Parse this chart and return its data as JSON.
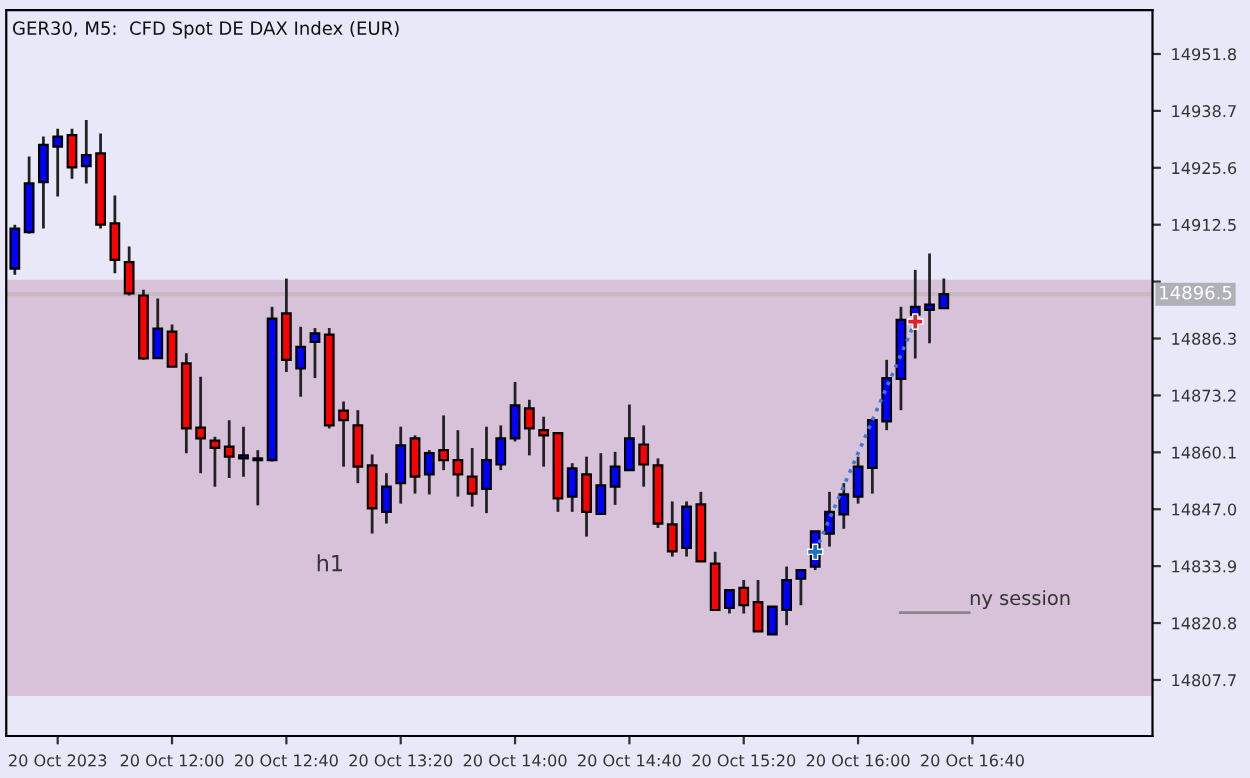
{
  "chart_data": {
    "type": "candlestick",
    "title": "GER30, M5:  CFD Spot DE DAX Index (EUR)",
    "x": [
      "2023-10-20T11:05",
      "2023-10-20T11:10",
      "2023-10-20T11:15",
      "2023-10-20T11:20",
      "2023-10-20T11:25",
      "2023-10-20T11:30",
      "2023-10-20T11:35",
      "2023-10-20T11:40",
      "2023-10-20T11:45",
      "2023-10-20T11:50",
      "2023-10-20T11:55",
      "2023-10-20T12:00",
      "2023-10-20T12:05",
      "2023-10-20T12:10",
      "2023-10-20T12:15",
      "2023-10-20T12:20",
      "2023-10-20T12:25",
      "2023-10-20T12:30",
      "2023-10-20T12:35",
      "2023-10-20T12:40",
      "2023-10-20T12:45",
      "2023-10-20T12:50",
      "2023-10-20T12:55",
      "2023-10-20T13:00",
      "2023-10-20T13:05",
      "2023-10-20T13:10",
      "2023-10-20T13:15",
      "2023-10-20T13:20",
      "2023-10-20T13:25",
      "2023-10-20T13:30",
      "2023-10-20T13:35",
      "2023-10-20T13:40",
      "2023-10-20T13:45",
      "2023-10-20T13:50",
      "2023-10-20T13:55",
      "2023-10-20T14:00",
      "2023-10-20T14:05",
      "2023-10-20T14:10",
      "2023-10-20T14:15",
      "2023-10-20T14:20",
      "2023-10-20T14:25",
      "2023-10-20T14:30",
      "2023-10-20T14:35",
      "2023-10-20T14:40",
      "2023-10-20T14:45",
      "2023-10-20T14:50",
      "2023-10-20T14:55",
      "2023-10-20T15:00",
      "2023-10-20T15:05",
      "2023-10-20T15:10",
      "2023-10-20T15:15",
      "2023-10-20T15:20",
      "2023-10-20T15:25",
      "2023-10-20T15:30",
      "2023-10-20T15:35",
      "2023-10-20T15:40",
      "2023-10-20T15:45",
      "2023-10-20T15:50",
      "2023-10-20T15:55",
      "2023-10-20T16:00",
      "2023-10-20T16:05",
      "2023-10-20T16:10",
      "2023-10-20T16:15",
      "2023-10-20T16:20",
      "2023-10-20T16:25",
      "2023-10-20T16:30"
    ],
    "ohlc": [
      [
        14902.4,
        14912.5,
        14901.0,
        14911.6
      ],
      [
        14910.8,
        14928.2,
        14910.5,
        14922.0
      ],
      [
        14922.3,
        14932.8,
        14911.6,
        14930.9
      ],
      [
        14930.5,
        14934.6,
        14919.0,
        14932.8
      ],
      [
        14933.1,
        14934.6,
        14923.1,
        14925.7
      ],
      [
        14926.0,
        14936.6,
        14922.0,
        14928.5
      ],
      [
        14928.9,
        14933.5,
        14911.6,
        14912.5
      ],
      [
        14912.8,
        14919.2,
        14901.3,
        14904.4
      ],
      [
        14903.9,
        14907.5,
        14896.2,
        14896.7
      ],
      [
        14896.2,
        14897.5,
        14881.4,
        14881.7
      ],
      [
        14881.8,
        14895.5,
        14881.8,
        14888.6
      ],
      [
        14887.9,
        14889.5,
        14879.8,
        14879.8
      ],
      [
        14880.6,
        14882.9,
        14859.9,
        14865.6
      ],
      [
        14865.8,
        14877.5,
        14855.3,
        14863.3
      ],
      [
        14862.8,
        14863.7,
        14852.2,
        14861.1
      ],
      [
        14861.4,
        14867.5,
        14854.2,
        14859.1
      ],
      [
        14858.7,
        14866.0,
        14854.5,
        14859.4
      ],
      [
        14858.3,
        14860.6,
        14847.9,
        14858.7
      ],
      [
        14858.3,
        14893.6,
        14858.0,
        14890.9
      ],
      [
        14892.1,
        14900.1,
        14878.6,
        14881.4
      ],
      [
        14879.4,
        14889.0,
        14872.9,
        14884.4
      ],
      [
        14885.5,
        14888.7,
        14877.2,
        14887.5
      ],
      [
        14887.2,
        14888.7,
        14865.6,
        14866.3
      ],
      [
        14869.7,
        14871.8,
        14856.8,
        14867.5
      ],
      [
        14866.3,
        14869.8,
        14853.0,
        14856.8
      ],
      [
        14857.1,
        14859.6,
        14841.4,
        14847.2
      ],
      [
        14846.4,
        14855.3,
        14843.7,
        14852.2
      ],
      [
        14853.0,
        14866.0,
        14848.3,
        14861.7
      ],
      [
        14863.3,
        14864.0,
        14850.6,
        14854.5
      ],
      [
        14855.0,
        14860.6,
        14850.4,
        14859.9
      ],
      [
        14860.6,
        14868.6,
        14856.0,
        14858.3
      ],
      [
        14858.3,
        14865.2,
        14849.9,
        14855.0
      ],
      [
        14854.5,
        14861.1,
        14847.6,
        14850.6
      ],
      [
        14851.7,
        14866.0,
        14846.1,
        14858.3
      ],
      [
        14857.3,
        14866.3,
        14856.0,
        14863.3
      ],
      [
        14863.3,
        14876.3,
        14862.6,
        14870.9
      ],
      [
        14870.2,
        14872.2,
        14859.4,
        14865.6
      ],
      [
        14865.2,
        14868.3,
        14856.8,
        14864.0
      ],
      [
        14864.5,
        14864.5,
        14846.4,
        14849.5
      ],
      [
        14849.9,
        14857.6,
        14846.4,
        14856.4
      ],
      [
        14855.0,
        14859.1,
        14840.7,
        14846.4
      ],
      [
        14845.9,
        14859.9,
        14845.9,
        14852.5
      ],
      [
        14852.2,
        14860.2,
        14848.0,
        14856.8
      ],
      [
        14856.0,
        14871.1,
        14856.0,
        14863.3
      ],
      [
        14861.9,
        14866.3,
        14852.2,
        14857.3
      ],
      [
        14857.1,
        14858.7,
        14842.7,
        14843.7
      ],
      [
        14843.5,
        14848.8,
        14836.1,
        14837.3
      ],
      [
        14838.1,
        14848.8,
        14836.1,
        14847.6
      ],
      [
        14848.1,
        14851.0,
        14835.0,
        14835.0
      ],
      [
        14834.5,
        14837.2,
        14823.8,
        14823.8
      ],
      [
        14824.3,
        14828.4,
        14823.0,
        14828.4
      ],
      [
        14828.9,
        14830.7,
        14823.0,
        14824.9
      ],
      [
        14825.6,
        14830.7,
        14818.9,
        14818.9
      ],
      [
        14818.2,
        14824.6,
        14818.2,
        14824.6
      ],
      [
        14823.8,
        14833.8,
        14820.3,
        14830.7
      ],
      [
        14831.0,
        14833.0,
        14824.9,
        14833.0
      ],
      [
        14833.8,
        14841.9,
        14833.0,
        14841.9
      ],
      [
        14841.4,
        14851.0,
        14838.4,
        14846.4
      ],
      [
        14845.8,
        14853.0,
        14842.5,
        14850.4
      ],
      [
        14849.9,
        14859.1,
        14848.3,
        14856.8
      ],
      [
        14856.5,
        14868.0,
        14850.6,
        14867.5
      ],
      [
        14867.2,
        14881.4,
        14865.2,
        14877.2
      ],
      [
        14877.0,
        14893.6,
        14869.8,
        14890.6
      ],
      [
        14891.8,
        14902.1,
        14881.7,
        14893.6
      ],
      [
        14892.9,
        14905.9,
        14885.2,
        14894.1
      ],
      [
        14893.3,
        14900.1,
        14893.3,
        14896.5
      ]
    ],
    "colors": [
      "#0000ff",
      "#0000ff",
      "#0000ff",
      "#0000ff",
      "#ff0000",
      "#0000ff",
      "#ff0000",
      "#ff0000",
      "#ff0000",
      "#ff0000",
      "#0000ff",
      "#ff0000",
      "#ff0000",
      "#ff0000",
      "#ff0000",
      "#ff0000",
      "#0000ff",
      "#0000ff",
      "#0000ff",
      "#ff0000",
      "#0000ff",
      "#0000ff",
      "#ff0000",
      "#ff0000",
      "#ff0000",
      "#ff0000",
      "#0000ff",
      "#0000ff",
      "#ff0000",
      "#0000ff",
      "#ff0000",
      "#ff0000",
      "#ff0000",
      "#0000ff",
      "#0000ff",
      "#0000ff",
      "#ff0000",
      "#ff0000",
      "#ff0000",
      "#0000ff",
      "#ff0000",
      "#0000ff",
      "#0000ff",
      "#0000ff",
      "#ff0000",
      "#ff0000",
      "#ff0000",
      "#0000ff",
      "#ff0000",
      "#ff0000",
      "#0000ff",
      "#ff0000",
      "#ff0000",
      "#0000ff",
      "#0000ff",
      "#0000ff",
      "#0000ff",
      "#0000ff",
      "#0000ff",
      "#0000ff",
      "#0000ff",
      "#0000ff",
      "#0000ff",
      "#0000ff",
      "#0000ff",
      "#0000ff"
    ],
    "series": [
      {
        "type": "line",
        "x": [
          "2023-10-20T15:45",
          "2023-10-20T16:20"
        ],
        "values": [
          14837.2,
          14890.2
        ],
        "color": "#3a7bd5",
        "line_style": "dotted"
      },
      {
        "type": "scatter",
        "x": [
          "2023-10-20T15:45",
          "2023-10-20T16:20"
        ],
        "values": [
          14837.2,
          14890.2
        ],
        "colors": [
          "#1e6fc9",
          "#e0202a"
        ],
        "marker": "cross"
      }
    ],
    "bands": [
      {
        "axis": "y",
        "from": 14804.0,
        "to": 14899.8,
        "label": "h1",
        "color": "#d8c2da"
      }
    ],
    "ref_lines": [
      {
        "axis": "y",
        "value": 14896.5,
        "label": "14896.5",
        "color": "#c8b8c0"
      }
    ],
    "annotations": [
      "ny session"
    ],
    "xlim": [
      "2023-10-20T11:02",
      "2023-10-20T17:43"
    ],
    "xticks": [
      {
        "value": "2023-10-20T11:20",
        "label": "20 Oct 2023"
      },
      {
        "value": "2023-10-20T12:00",
        "label": "20 Oct 12:00"
      },
      {
        "value": "2023-10-20T12:40",
        "label": "20 Oct 12:40"
      },
      {
        "value": "2023-10-20T13:20",
        "label": "20 Oct 13:20"
      },
      {
        "value": "2023-10-20T14:00",
        "label": "20 Oct 14:00"
      },
      {
        "value": "2023-10-20T14:40",
        "label": "20 Oct 14:40"
      },
      {
        "value": "2023-10-20T15:20",
        "label": "20 Oct 15:20"
      },
      {
        "value": "2023-10-20T16:00",
        "label": "20 Oct 16:00"
      },
      {
        "value": "2023-10-20T16:40",
        "label": "20 Oct 16:40"
      }
    ],
    "ylim": [
      14794.8,
      14961.9
    ],
    "yticks": [
      14807.7,
      14820.8,
      14833.9,
      {
        "value": 14847.0,
        "label": "14847.0"
      },
      14860.1,
      14873.2,
      14886.3,
      {
        "value": 14899.4,
        "label": null
      },
      14912.5,
      14925.6,
      14938.7,
      14951.8
    ],
    "grid": false
  }
}
